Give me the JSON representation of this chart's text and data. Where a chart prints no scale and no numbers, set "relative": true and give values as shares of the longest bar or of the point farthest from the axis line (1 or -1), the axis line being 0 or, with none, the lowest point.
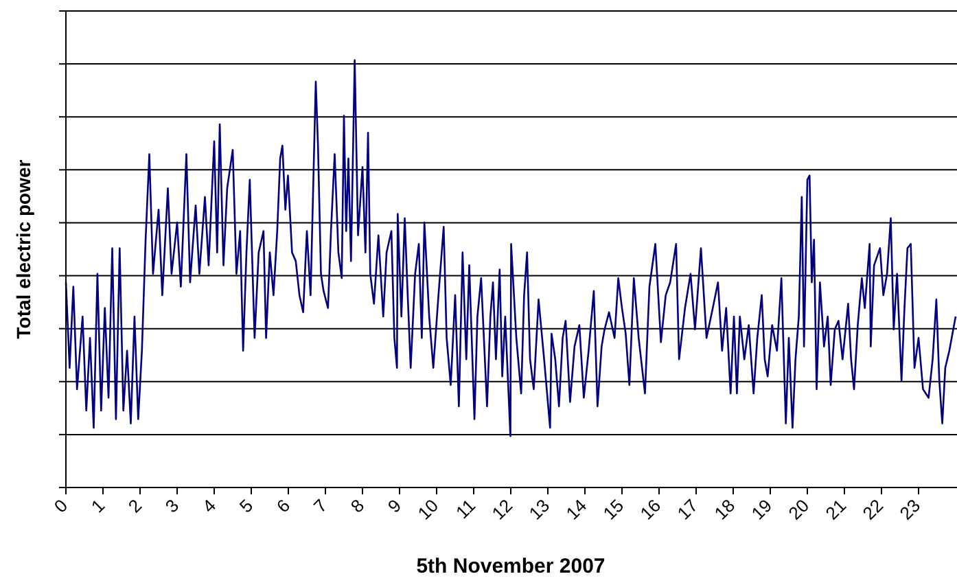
{
  "chart_data": {
    "type": "line",
    "xlabel": "5th November 2007",
    "ylabel": "Total electric power",
    "relative": true,
    "grid": true,
    "tick_labels": "x",
    "marker": "none",
    "line_style": "solid",
    "xlim": [
      0,
      24
    ],
    "xticks": [
      0,
      1,
      2,
      3,
      4,
      5,
      6,
      7,
      8,
      9,
      10,
      11,
      12,
      13,
      14,
      15,
      16,
      17,
      18,
      19,
      20,
      21,
      22,
      23
    ],
    "series": [
      {
        "color": "#000080",
        "x": [
          0,
          0.1,
          0.2,
          0.3,
          0.45,
          0.55,
          0.65,
          0.75,
          0.85,
          0.95,
          1.05,
          1.15,
          1.25,
          1.35,
          1.45,
          1.55,
          1.65,
          1.75,
          1.85,
          1.95,
          2.05,
          2.15,
          2.25,
          2.35,
          2.5,
          2.6,
          2.75,
          2.85,
          3.0,
          3.1,
          3.25,
          3.35,
          3.5,
          3.6,
          3.75,
          3.85,
          4.0,
          4.08,
          4.15,
          4.25,
          4.35,
          4.5,
          4.6,
          4.7,
          4.78,
          4.87,
          4.96,
          5.09,
          5.2,
          5.33,
          5.4,
          5.5,
          5.6,
          5.7,
          5.78,
          5.84,
          5.92,
          5.99,
          6.1,
          6.2,
          6.3,
          6.4,
          6.5,
          6.6,
          6.74,
          6.8,
          6.88,
          6.95,
          7.07,
          7.15,
          7.25,
          7.35,
          7.44,
          7.5,
          7.56,
          7.62,
          7.69,
          7.79,
          7.88,
          8.0,
          8.08,
          8.15,
          8.21,
          8.31,
          8.43,
          8.56,
          8.65,
          8.78,
          8.86,
          8.93,
          8.95,
          9.05,
          9.14,
          9.22,
          9.3,
          9.42,
          9.52,
          9.6,
          9.67,
          9.8,
          9.91,
          10.05,
          10.19,
          10.27,
          10.38,
          10.5,
          10.6,
          10.7,
          10.8,
          10.88,
          11.02,
          11.1,
          11.2,
          11.36,
          11.45,
          11.52,
          11.6,
          11.7,
          11.77,
          11.85,
          11.99,
          12.01,
          12.15,
          12.28,
          12.36,
          12.44,
          12.52,
          12.62,
          12.75,
          12.9,
          13.06,
          13.1,
          13.2,
          13.3,
          13.4,
          13.48,
          13.6,
          13.72,
          13.85,
          13.97,
          14.1,
          14.24,
          14.34,
          14.45,
          14.53,
          14.65,
          14.8,
          14.9,
          15.0,
          15.1,
          15.2,
          15.32,
          15.45,
          15.62,
          15.74,
          15.9,
          16.05,
          16.18,
          16.3,
          16.46,
          16.54,
          16.7,
          16.85,
          16.97,
          17.13,
          17.28,
          17.45,
          17.59,
          17.7,
          17.81,
          17.93,
          18.02,
          18.1,
          18.18,
          18.3,
          18.42,
          18.55,
          18.65,
          18.77,
          18.85,
          18.93,
          19.05,
          19.18,
          19.3,
          19.42,
          19.5,
          19.6,
          19.68,
          19.77,
          19.85,
          19.91,
          20.0,
          20.06,
          20.12,
          20.18,
          20.25,
          20.34,
          20.45,
          20.55,
          20.63,
          20.74,
          20.84,
          20.95,
          21.1,
          21.18,
          21.26,
          21.36,
          21.47,
          21.55,
          21.68,
          21.71,
          21.8,
          21.96,
          22.05,
          22.15,
          22.25,
          22.33,
          22.42,
          22.54,
          22.62,
          22.7,
          22.79,
          22.89,
          23.0,
          23.12,
          23.27,
          23.38,
          23.48,
          23.56,
          23.64,
          23.72,
          23.83,
          24
        ],
        "values": [
          0.48,
          0.28,
          0.47,
          0.23,
          0.4,
          0.18,
          0.35,
          0.14,
          0.5,
          0.18,
          0.42,
          0.21,
          0.56,
          0.16,
          0.56,
          0.18,
          0.32,
          0.15,
          0.4,
          0.16,
          0.32,
          0.58,
          0.78,
          0.5,
          0.65,
          0.45,
          0.7,
          0.5,
          0.62,
          0.47,
          0.78,
          0.48,
          0.66,
          0.5,
          0.68,
          0.52,
          0.81,
          0.55,
          0.85,
          0.52,
          0.7,
          0.79,
          0.5,
          0.6,
          0.32,
          0.55,
          0.72,
          0.35,
          0.55,
          0.6,
          0.35,
          0.55,
          0.45,
          0.6,
          0.77,
          0.8,
          0.65,
          0.73,
          0.55,
          0.53,
          0.45,
          0.41,
          0.6,
          0.45,
          0.95,
          0.8,
          0.5,
          0.46,
          0.42,
          0.6,
          0.78,
          0.55,
          0.49,
          0.87,
          0.6,
          0.77,
          0.53,
          1.0,
          0.59,
          0.75,
          0.55,
          0.83,
          0.5,
          0.43,
          0.59,
          0.4,
          0.55,
          0.6,
          0.35,
          0.28,
          0.64,
          0.4,
          0.63,
          0.45,
          0.28,
          0.5,
          0.57,
          0.35,
          0.62,
          0.4,
          0.28,
          0.45,
          0.61,
          0.35,
          0.24,
          0.45,
          0.19,
          0.55,
          0.3,
          0.52,
          0.16,
          0.4,
          0.49,
          0.19,
          0.4,
          0.48,
          0.3,
          0.51,
          0.26,
          0.4,
          0.12,
          0.57,
          0.35,
          0.22,
          0.45,
          0.55,
          0.3,
          0.23,
          0.44,
          0.3,
          0.14,
          0.36,
          0.3,
          0.19,
          0.35,
          0.39,
          0.2,
          0.33,
          0.38,
          0.21,
          0.32,
          0.46,
          0.19,
          0.33,
          0.37,
          0.41,
          0.35,
          0.49,
          0.42,
          0.36,
          0.24,
          0.49,
          0.35,
          0.22,
          0.47,
          0.57,
          0.34,
          0.45,
          0.48,
          0.57,
          0.3,
          0.42,
          0.5,
          0.37,
          0.56,
          0.35,
          0.42,
          0.48,
          0.32,
          0.42,
          0.22,
          0.4,
          0.22,
          0.4,
          0.3,
          0.38,
          0.22,
          0.35,
          0.45,
          0.3,
          0.26,
          0.38,
          0.32,
          0.49,
          0.15,
          0.35,
          0.14,
          0.3,
          0.4,
          0.68,
          0.33,
          0.72,
          0.73,
          0.48,
          0.58,
          0.23,
          0.48,
          0.33,
          0.4,
          0.24,
          0.37,
          0.39,
          0.3,
          0.43,
          0.3,
          0.23,
          0.38,
          0.49,
          0.42,
          0.57,
          0.33,
          0.52,
          0.56,
          0.45,
          0.5,
          0.63,
          0.37,
          0.5,
          0.25,
          0.42,
          0.56,
          0.57,
          0.28,
          0.35,
          0.23,
          0.21,
          0.3,
          0.44,
          0.25,
          0.15,
          0.28,
          0.32,
          0.4
        ]
      }
    ]
  }
}
